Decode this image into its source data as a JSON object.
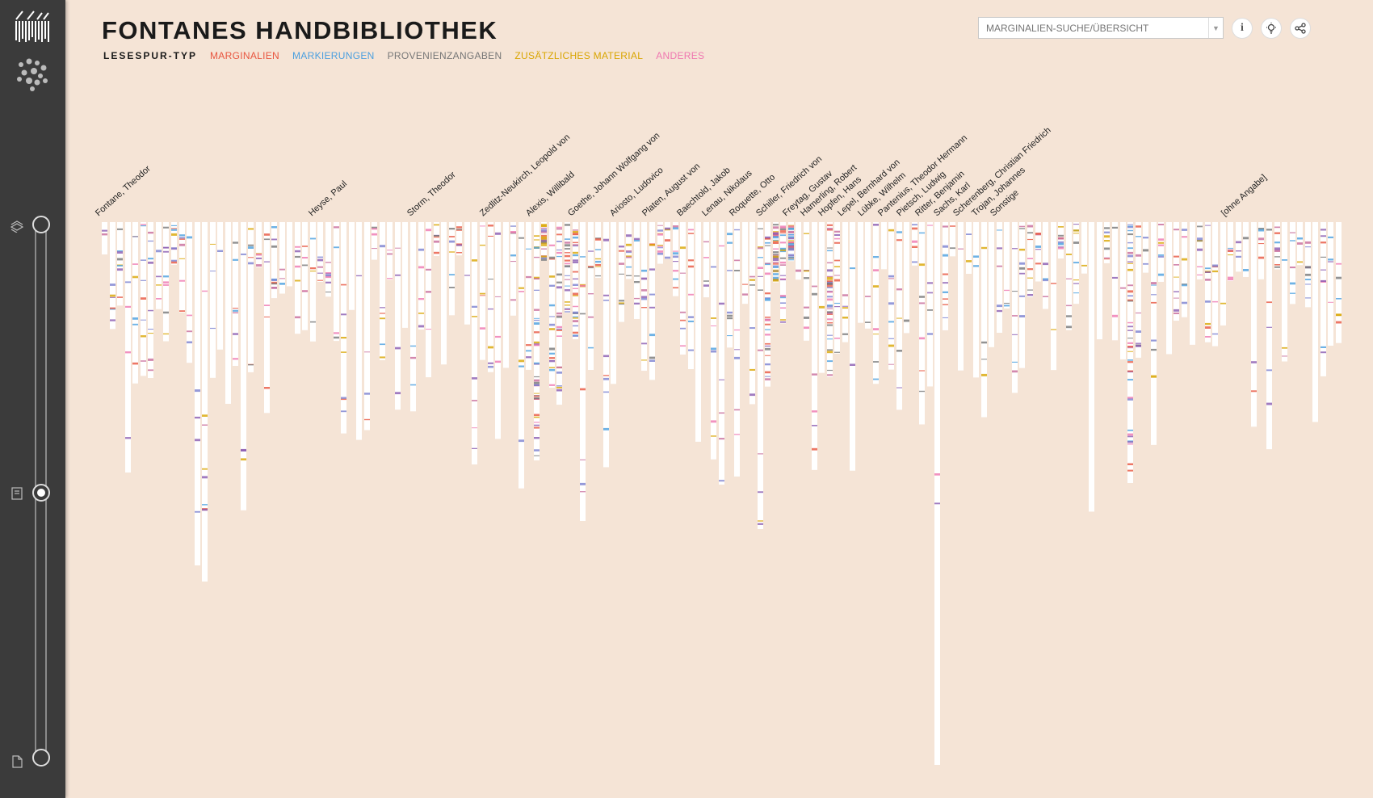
{
  "app": {
    "title": "FONTANES HANDBIBLIOTHEK"
  },
  "legend": {
    "heading": "LESESPUR-TYP",
    "items": [
      {
        "label": "MARGINALIEN",
        "color": "#e8553f"
      },
      {
        "label": "MARKIERUNGEN",
        "color": "#4a9fdf"
      },
      {
        "label": "PROVENIENZANGABEN",
        "color": "#777777"
      },
      {
        "label": "ZUSÄTZLICHES MATERIAL",
        "color": "#d9a500"
      },
      {
        "label": "ANDERES",
        "color": "#ef77b0"
      }
    ]
  },
  "search": {
    "placeholder": "MARGINALIEN-SUCHE/ÜBERSICHT"
  },
  "toolbar": {
    "info_label": "i"
  },
  "colors": {
    "background": "#f5e4d6",
    "sidebar": "#3b3b3b",
    "book": "#ffffff"
  },
  "authors": [
    "Fontane, Theodor",
    "Heyse, Paul",
    "Storm, Theodor",
    "Zedlitz-Neukirch, Leopold von",
    "Alexis, Willibald",
    "Goethe, Johann Wolfgang von",
    "Ariosto, Ludovico",
    "Platen, August von",
    "Baechtold, Jakob",
    "Lenau, Nikolaus",
    "Roquette, Otto",
    "Schiller, Friedrich von",
    "Freytag, Gustav",
    "Hamerling, Robert",
    "Hopfen, Hans",
    "Lepel, Bernhard von",
    "Lübke, Wilhelm",
    "Pantenius, Theodor Hermann",
    "Pietsch, Ludwig",
    "Ritter, Benjamin",
    "Sachs, Karl",
    "Scherenberg, Christian Friedrich",
    "Trojan, Johannes",
    "Sonstige",
    "[ohne Angabe]"
  ]
}
